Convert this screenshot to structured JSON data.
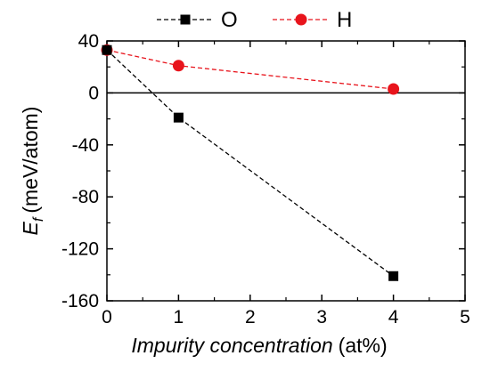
{
  "chart_data": {
    "type": "line",
    "x": [
      0,
      1,
      4
    ],
    "series": [
      {
        "name": "O",
        "color": "#000000",
        "marker": "square",
        "values": [
          33,
          -19,
          -141
        ]
      },
      {
        "name": "H",
        "color": "#e8141c",
        "marker": "circle",
        "values": [
          33,
          21,
          3
        ]
      }
    ],
    "xlabel_italic": "Impurity concentration",
    "xlabel_unit": "(at%)",
    "ylabel_symbol": "E",
    "ylabel_subscript": "f",
    "ylabel_unit": "(meV/atom)",
    "xlim": [
      0,
      5
    ],
    "ylim": [
      -160,
      40
    ],
    "xticks": [
      "0",
      "1",
      "2",
      "3",
      "4",
      "5"
    ],
    "yticks": [
      "40",
      "0",
      "-40",
      "-80",
      "-120",
      "-160"
    ],
    "zero_line": true,
    "legend_position": "top-center",
    "grid": false
  }
}
